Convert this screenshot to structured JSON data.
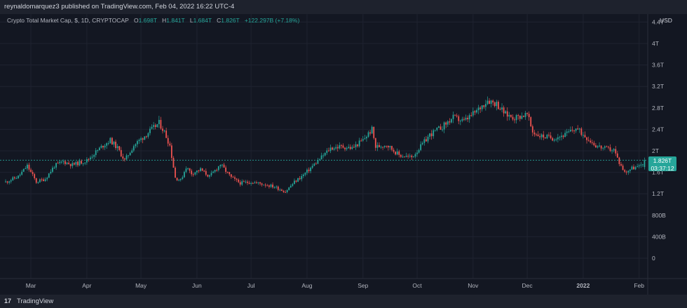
{
  "header": {
    "published": "reynaldomarquez3 published on TradingView.com, Feb 04, 2022 16:22 UTC-4"
  },
  "legend": {
    "symbol": "Crypto Total Market Cap, $, 1D, CRYPTOCAP",
    "open_label": "O",
    "open": "1.698T",
    "high_label": "H",
    "high": "1.841T",
    "low_label": "L",
    "low": "1.684T",
    "close_label": "C",
    "close": "1.826T",
    "change": "+122.297B (+7.18%)"
  },
  "axis": {
    "currency": "USD"
  },
  "price_tag": {
    "price": "1.826T",
    "countdown": "03:37:12"
  },
  "footer": {
    "logo": "17",
    "brand": "TradingView"
  },
  "colors": {
    "background": "#131722",
    "up": "#26a69a",
    "down": "#ef5350",
    "grid": "#1f2330",
    "text": "#b2b5be"
  },
  "chart_data": {
    "type": "candlestick",
    "title": "Crypto Total Market Cap, $, 1D, CRYPTOCAP",
    "ylabel": "",
    "xlabel": "",
    "y_unit": "T USD",
    "ylim": [
      -0.2,
      4.6
    ],
    "grid": true,
    "y_ticks": [
      {
        "value": 4.4,
        "label": "4.4T"
      },
      {
        "value": 4.0,
        "label": "4T"
      },
      {
        "value": 3.6,
        "label": "3.6T"
      },
      {
        "value": 3.2,
        "label": "3.2T"
      },
      {
        "value": 2.8,
        "label": "2.8T"
      },
      {
        "value": 2.4,
        "label": "2.4T"
      },
      {
        "value": 2.0,
        "label": "2T"
      },
      {
        "value": 1.6,
        "label": "1.6T"
      },
      {
        "value": 1.2,
        "label": "1.2T"
      },
      {
        "value": 0.8,
        "label": "800B"
      },
      {
        "value": 0.4,
        "label": "400B"
      },
      {
        "value": 0.0,
        "label": "0"
      }
    ],
    "x_ticks": [
      "Mar",
      "Apr",
      "May",
      "Jun",
      "Jul",
      "Aug",
      "Sep",
      "Oct",
      "Nov",
      "Dec",
      "2022",
      "Feb"
    ],
    "x_tick_dates": [
      "2021-03-01",
      "2021-04-01",
      "2021-05-01",
      "2021-06-01",
      "2021-07-01",
      "2021-08-01",
      "2021-09-01",
      "2021-10-01",
      "2021-11-01",
      "2021-12-01",
      "2022-01-01",
      "2022-02-01"
    ],
    "x_range": [
      "2021-02-15",
      "2022-02-05"
    ],
    "current_price": 1.826,
    "closes": [
      {
        "date": "2021-02-15",
        "close": 1.42
      },
      {
        "date": "2021-02-22",
        "close": 1.52
      },
      {
        "date": "2021-02-27",
        "close": 1.72
      },
      {
        "date": "2021-03-04",
        "close": 1.42
      },
      {
        "date": "2021-03-09",
        "close": 1.48
      },
      {
        "date": "2021-03-14",
        "close": 1.72
      },
      {
        "date": "2021-03-19",
        "close": 1.8
      },
      {
        "date": "2021-03-24",
        "close": 1.74
      },
      {
        "date": "2021-04-01",
        "close": 1.82
      },
      {
        "date": "2021-04-05",
        "close": 1.95
      },
      {
        "date": "2021-04-10",
        "close": 2.1
      },
      {
        "date": "2021-04-14",
        "close": 2.2
      },
      {
        "date": "2021-04-18",
        "close": 2.05
      },
      {
        "date": "2021-04-22",
        "close": 1.82
      },
      {
        "date": "2021-04-27",
        "close": 2.1
      },
      {
        "date": "2021-05-02",
        "close": 2.25
      },
      {
        "date": "2021-05-07",
        "close": 2.4
      },
      {
        "date": "2021-05-11",
        "close": 2.52
      },
      {
        "date": "2021-05-14",
        "close": 2.35
      },
      {
        "date": "2021-05-17",
        "close": 2.1
      },
      {
        "date": "2021-05-20",
        "close": 1.5
      },
      {
        "date": "2021-05-23",
        "close": 1.45
      },
      {
        "date": "2021-05-26",
        "close": 1.7
      },
      {
        "date": "2021-05-29",
        "close": 1.58
      },
      {
        "date": "2021-06-03",
        "close": 1.65
      },
      {
        "date": "2021-06-08",
        "close": 1.52
      },
      {
        "date": "2021-06-14",
        "close": 1.75
      },
      {
        "date": "2021-06-20",
        "close": 1.5
      },
      {
        "date": "2021-06-25",
        "close": 1.4
      },
      {
        "date": "2021-07-01",
        "close": 1.42
      },
      {
        "date": "2021-07-08",
        "close": 1.38
      },
      {
        "date": "2021-07-14",
        "close": 1.33
      },
      {
        "date": "2021-07-20",
        "close": 1.24
      },
      {
        "date": "2021-07-25",
        "close": 1.42
      },
      {
        "date": "2021-07-30",
        "close": 1.55
      },
      {
        "date": "2021-08-06",
        "close": 1.78
      },
      {
        "date": "2021-08-14",
        "close": 2.05
      },
      {
        "date": "2021-08-20",
        "close": 2.08
      },
      {
        "date": "2021-08-26",
        "close": 2.05
      },
      {
        "date": "2021-09-01",
        "close": 2.2
      },
      {
        "date": "2021-09-06",
        "close": 2.4
      },
      {
        "date": "2021-09-08",
        "close": 2.07
      },
      {
        "date": "2021-09-14",
        "close": 2.12
      },
      {
        "date": "2021-09-21",
        "close": 1.92
      },
      {
        "date": "2021-09-28",
        "close": 1.88
      },
      {
        "date": "2021-10-03",
        "close": 2.08
      },
      {
        "date": "2021-10-08",
        "close": 2.3
      },
      {
        "date": "2021-10-15",
        "close": 2.45
      },
      {
        "date": "2021-10-21",
        "close": 2.62
      },
      {
        "date": "2021-10-27",
        "close": 2.55
      },
      {
        "date": "2021-11-03",
        "close": 2.74
      },
      {
        "date": "2021-11-09",
        "close": 2.95
      },
      {
        "date": "2021-11-14",
        "close": 2.88
      },
      {
        "date": "2021-11-19",
        "close": 2.68
      },
      {
        "date": "2021-11-24",
        "close": 2.62
      },
      {
        "date": "2021-12-01",
        "close": 2.68
      },
      {
        "date": "2021-12-04",
        "close": 2.35
      },
      {
        "date": "2021-12-08",
        "close": 2.28
      },
      {
        "date": "2021-12-15",
        "close": 2.24
      },
      {
        "date": "2021-12-22",
        "close": 2.3
      },
      {
        "date": "2021-12-28",
        "close": 2.42
      },
      {
        "date": "2022-01-03",
        "close": 2.25
      },
      {
        "date": "2022-01-08",
        "close": 2.1
      },
      {
        "date": "2022-01-13",
        "close": 2.04
      },
      {
        "date": "2022-01-18",
        "close": 2.02
      },
      {
        "date": "2022-01-21",
        "close": 1.78
      },
      {
        "date": "2022-01-24",
        "close": 1.6
      },
      {
        "date": "2022-01-28",
        "close": 1.68
      },
      {
        "date": "2022-02-01",
        "close": 1.7
      },
      {
        "date": "2022-02-04",
        "close": 1.826
      }
    ]
  }
}
